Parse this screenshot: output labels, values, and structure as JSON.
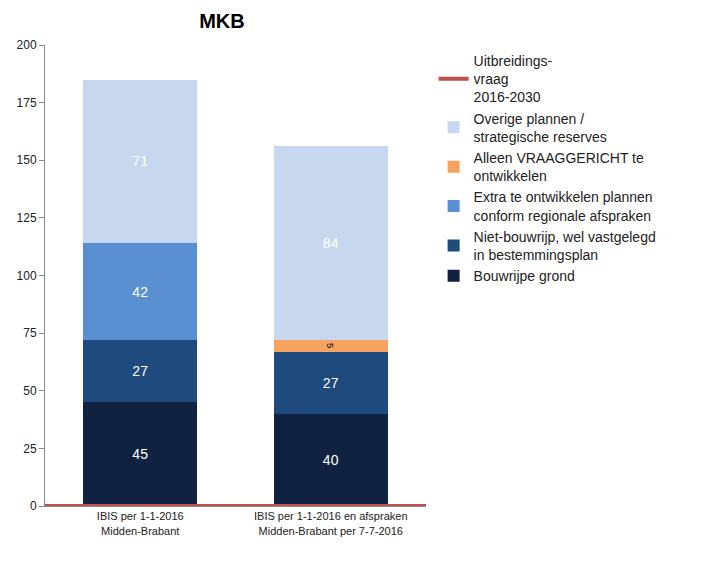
{
  "chart_data": {
    "type": "bar",
    "title": "MKB",
    "categories": [
      "IBIS per 1-1-2016\nMidden-Brabant",
      "IBIS per 1-1-2016 en afspraken\nMidden-Brabant per 7-7-2016"
    ],
    "stacked": true,
    "data_labels": true,
    "grid": false,
    "legend": "right",
    "ylim": [
      0,
      200
    ],
    "yticks": [
      0,
      25,
      50,
      75,
      100,
      125,
      150,
      175,
      200
    ],
    "series": [
      {
        "name": "Bouwrijpe grond",
        "color": "#10223f",
        "values": [
          45,
          40
        ]
      },
      {
        "name": "Niet-bouwrijp, wel vastgelegd\nin bestemmingsplan",
        "color": "#1f4a7e",
        "values": [
          27,
          27
        ]
      },
      {
        "name": "Extra te ontwikkelen plannen\nconform regionale afspraken",
        "color": "#5a8fd2",
        "values": [
          42,
          null
        ]
      },
      {
        "name": "Alleen VRAAGGERICHT te\nontwikkelen",
        "color": "#f5a35f",
        "values": [
          null,
          5
        ]
      },
      {
        "name": "Overige plannen /\nstrategische reserves",
        "color": "#c6d7ef",
        "values": [
          71,
          84
        ]
      },
      {
        "name": "Uitbreidings-\nvraag\n2016-2030",
        "type": "line",
        "color": "#c0504d",
        "values": [
          0,
          0
        ]
      }
    ]
  }
}
